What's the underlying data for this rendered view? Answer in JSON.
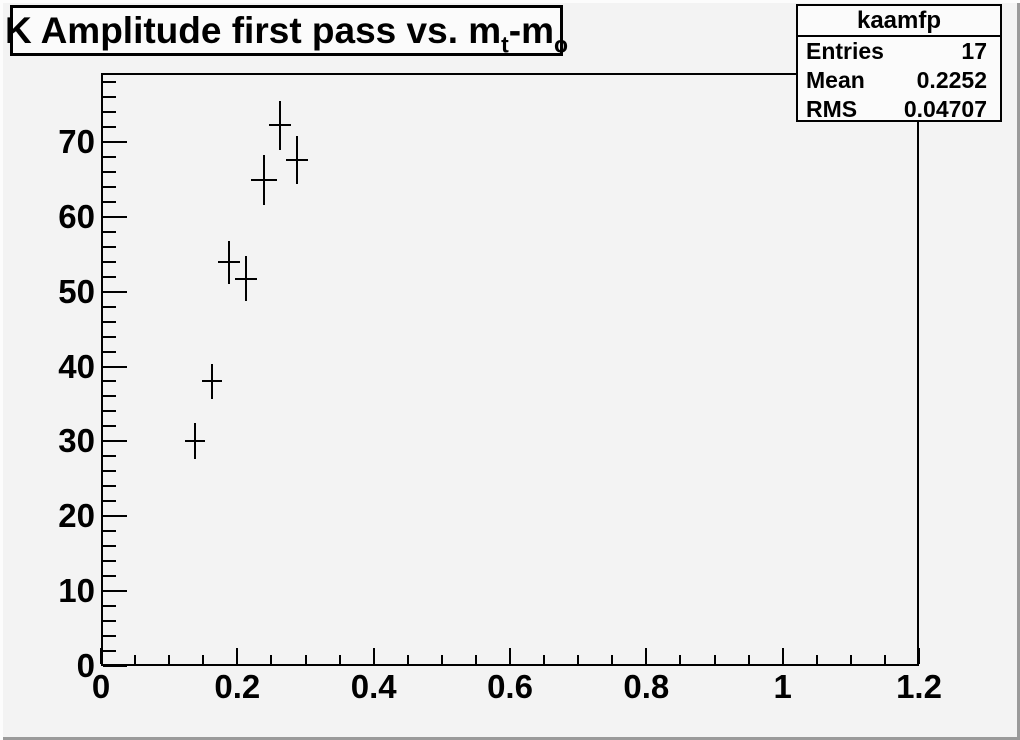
{
  "window": {
    "background_color": "#f3f3f3",
    "border_highlight_color": "#fcfcfc",
    "border_shadow_color": "#9a9a9a"
  },
  "title_box": {
    "full_text": "K Amplitude first pass vs. m_t-m_o",
    "parts": [
      {
        "text": "K Amplitude first pass vs. m"
      },
      {
        "text": "t"
      },
      {
        "text": "-m"
      },
      {
        "text": "o"
      }
    ]
  },
  "stats_box": {
    "title": "kaamfp",
    "rows": [
      {
        "label": "Entries",
        "value": "17"
      },
      {
        "label": "Mean",
        "value": "0.2252"
      },
      {
        "label": "RMS",
        "value": "0.04707"
      }
    ]
  },
  "chart_data": {
    "type": "scatter",
    "title": "K Amplitude first pass vs. m_t-m_o",
    "xlabel": "",
    "ylabel": "",
    "xlim": [
      0,
      1.2
    ],
    "ylim": [
      0,
      79.2
    ],
    "grid": false,
    "legend": false,
    "marker": "cross-error-bars",
    "line_color": "#000000",
    "x_major_ticks": [
      0,
      0.2,
      0.4,
      0.6,
      0.8,
      1,
      1.2
    ],
    "x_major_labels": [
      "0",
      "0.2",
      "0.4",
      "0.6",
      "0.8",
      "1",
      "1.2"
    ],
    "x_minor_step": 0.05,
    "y_major_ticks": [
      0,
      10,
      20,
      30,
      40,
      50,
      60,
      70
    ],
    "y_major_labels": [
      "0",
      "10",
      "20",
      "30",
      "40",
      "50",
      "60",
      "70"
    ],
    "y_minor_step": 2,
    "points": [
      {
        "x": 0.138,
        "y": 30.0,
        "ex": 0.015,
        "ey": 2.4
      },
      {
        "x": 0.163,
        "y": 38.0,
        "ex": 0.015,
        "ey": 2.4
      },
      {
        "x": 0.188,
        "y": 53.9,
        "ex": 0.016,
        "ey": 2.9
      },
      {
        "x": 0.213,
        "y": 51.7,
        "ex": 0.016,
        "ey": 3.0
      },
      {
        "x": 0.239,
        "y": 64.9,
        "ex": 0.019,
        "ey": 3.3
      },
      {
        "x": 0.262,
        "y": 72.2,
        "ex": 0.016,
        "ey": 3.3
      },
      {
        "x": 0.288,
        "y": 67.6,
        "ex": 0.016,
        "ey": 3.2
      }
    ]
  }
}
